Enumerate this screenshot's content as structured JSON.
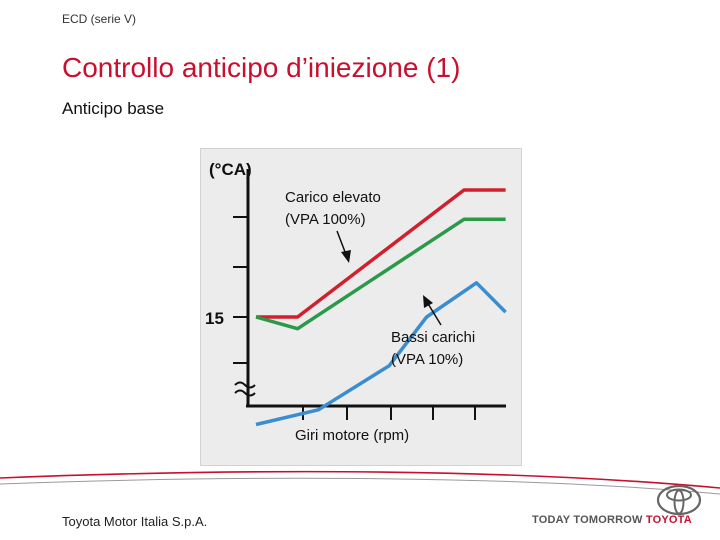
{
  "header": {
    "series": "ECD (serie V)",
    "title": "Controllo anticipo d’iniezione (1)",
    "subtitle": "Anticipo base"
  },
  "chart_data": {
    "type": "line",
    "xlabel": "Giri motore (rpm)",
    "ylabel": "(°CA)",
    "y_tick_label": "15",
    "series": [
      {
        "name": "Carico elevato (VPA 100%)",
        "color": "#d0202e",
        "points": [
          [
            0,
            15
          ],
          [
            1,
            15
          ],
          [
            5,
            28
          ],
          [
            6,
            28
          ]
        ]
      },
      {
        "name": "",
        "color": "#2a9a4a",
        "points": [
          [
            0,
            15
          ],
          [
            1,
            13.8
          ],
          [
            5,
            25
          ],
          [
            6,
            25
          ]
        ]
      },
      {
        "name": "Bassi carichi (VPA 10%)",
        "color": "#3a8ed0",
        "points": [
          [
            0,
            4
          ],
          [
            1.5,
            5.5
          ],
          [
            3.2,
            10
          ],
          [
            4.1,
            15
          ],
          [
            5.3,
            18.5
          ],
          [
            6,
            15.5
          ]
        ]
      }
    ],
    "annotations": [
      {
        "lines": [
          "Carico elevato",
          "(VPA 100%)"
        ]
      },
      {
        "lines": [
          "Bassi carichi",
          "(VPA 10%)"
        ]
      }
    ]
  },
  "footer": {
    "company": "Toyota Motor Italia S.p.A.",
    "slogan_a": "TODAY TOMORROW",
    "slogan_b": "TOYOTA"
  },
  "colors": {
    "accent": "#c8102e"
  }
}
